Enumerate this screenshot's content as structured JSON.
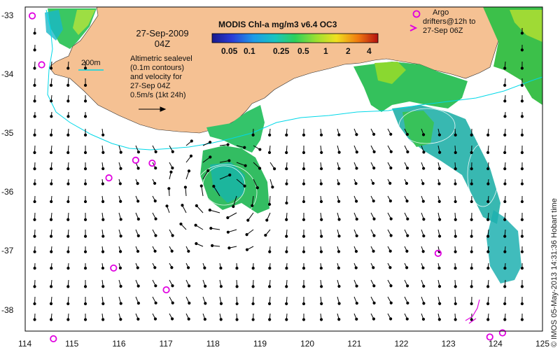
{
  "title": "MODIS Chl-a mg/m3 v6.4 OC3",
  "date": "27-Sep-2009",
  "time": "04Z",
  "colorbar_ticks": [
    "0.05",
    "0.1",
    "0.25",
    "0.5",
    "1",
    "2",
    "4"
  ],
  "legend": {
    "contour_label": "200m",
    "altimetry_lines": [
      "Altimetric sealevel",
      "(0.1m contours)",
      "and velocity for",
      "27-Sep 04Z",
      "0.5m/s (1kt 24h)"
    ],
    "argo_lines": [
      "Argo",
      "drifters@12h to",
      "27-Sep 06Z"
    ]
  },
  "credit": "© IMOS 05-May-2013 14:31:36 Hobart time",
  "x_ticks": [
    "114",
    "115",
    "116",
    "117",
    "118",
    "119",
    "120",
    "121",
    "122",
    "123",
    "124",
    "125"
  ],
  "y_ticks": [
    "-33",
    "-34",
    "-35",
    "-36",
    "-37",
    "-38"
  ],
  "colors": {
    "land": "#f5c193",
    "contour": "#00d8e8",
    "argo": "#e000e0",
    "vector": "#000000"
  },
  "argo_floats": [
    {
      "lon": 114.15,
      "lat": -33.0
    },
    {
      "lon": 114.35,
      "lat": -33.83
    },
    {
      "lon": 115.78,
      "lat": -35.75
    },
    {
      "lon": 116.35,
      "lat": -35.45
    },
    {
      "lon": 116.7,
      "lat": -35.5
    },
    {
      "lon": 115.88,
      "lat": -37.28
    },
    {
      "lon": 117.0,
      "lat": -37.65
    },
    {
      "lon": 122.78,
      "lat": -37.03
    },
    {
      "lon": 114.6,
      "lat": -38.48
    },
    {
      "lon": 123.88,
      "lat": -38.45
    },
    {
      "lon": 124.15,
      "lat": -38.38
    }
  ]
}
